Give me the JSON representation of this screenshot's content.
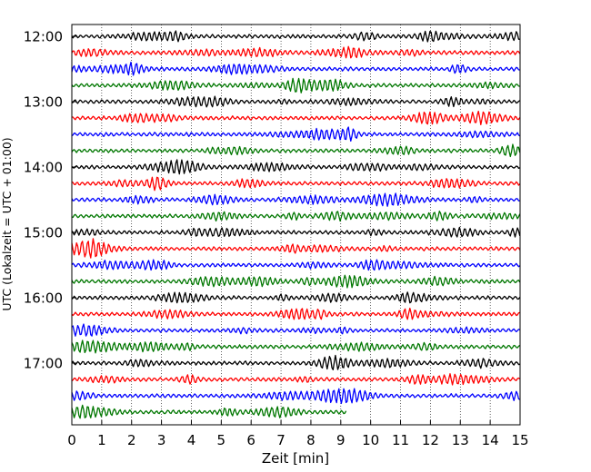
{
  "chart_data": {
    "type": "line",
    "title": "",
    "xlabel": "Zeit  [min]",
    "ylabel": "UTC (Lokalzeit = UTC + 01:00)",
    "xlim": [
      0,
      15
    ],
    "x_ticks": [
      0,
      1,
      2,
      3,
      4,
      5,
      6,
      7,
      8,
      9,
      10,
      11,
      12,
      13,
      14,
      15
    ],
    "x_tick_labels": [
      "0",
      "1",
      "2",
      "3",
      "4",
      "5",
      "6",
      "7",
      "8",
      "9",
      "10",
      "11",
      "12",
      "13",
      "14",
      "15"
    ],
    "y_tick_labels": [
      "12:00",
      "13:00",
      "14:00",
      "15:00",
      "16:00",
      "17:00"
    ],
    "y_ticks_hour_index": [
      0,
      1,
      2,
      3,
      4,
      5
    ],
    "traces_per_hour": 4,
    "trace_minutes": 15,
    "start_time": "12:00",
    "trace_count": 24,
    "last_trace_end_minute": 9.2,
    "vertical_grid": true,
    "grid_style": "dotted",
    "trace_colors": [
      "#000000",
      "#ff0000",
      "#0000ff",
      "#007700"
    ],
    "series": [
      {
        "start": "12:00",
        "color": "#000000",
        "x_end": 15
      },
      {
        "start": "12:15",
        "color": "#ff0000",
        "x_end": 15
      },
      {
        "start": "12:30",
        "color": "#0000ff",
        "x_end": 15
      },
      {
        "start": "12:45",
        "color": "#007700",
        "x_end": 15
      },
      {
        "start": "13:00",
        "color": "#000000",
        "x_end": 15
      },
      {
        "start": "13:15",
        "color": "#ff0000",
        "x_end": 15
      },
      {
        "start": "13:30",
        "color": "#0000ff",
        "x_end": 15
      },
      {
        "start": "13:45",
        "color": "#007700",
        "x_end": 15
      },
      {
        "start": "14:00",
        "color": "#000000",
        "x_end": 15
      },
      {
        "start": "14:15",
        "color": "#ff0000",
        "x_end": 15
      },
      {
        "start": "14:30",
        "color": "#0000ff",
        "x_end": 15
      },
      {
        "start": "14:45",
        "color": "#007700",
        "x_end": 15
      },
      {
        "start": "15:00",
        "color": "#000000",
        "x_end": 15
      },
      {
        "start": "15:15",
        "color": "#ff0000",
        "x_end": 15
      },
      {
        "start": "15:30",
        "color": "#0000ff",
        "x_end": 15
      },
      {
        "start": "15:45",
        "color": "#007700",
        "x_end": 15
      },
      {
        "start": "16:00",
        "color": "#000000",
        "x_end": 15
      },
      {
        "start": "16:15",
        "color": "#ff0000",
        "x_end": 15
      },
      {
        "start": "16:30",
        "color": "#0000ff",
        "x_end": 15
      },
      {
        "start": "16:45",
        "color": "#007700",
        "x_end": 15
      },
      {
        "start": "17:00",
        "color": "#000000",
        "x_end": 15
      },
      {
        "start": "17:15",
        "color": "#ff0000",
        "x_end": 15
      },
      {
        "start": "17:30",
        "color": "#0000ff",
        "x_end": 15
      },
      {
        "start": "17:45",
        "color": "#007700",
        "x_end": 9.2
      }
    ]
  }
}
